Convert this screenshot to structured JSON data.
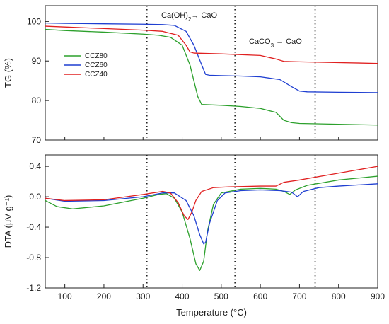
{
  "chart_data": [
    {
      "type": "line",
      "ylabel": "TG (%)",
      "xlim": [
        50,
        900
      ],
      "ylim": [
        70,
        104
      ],
      "yticks": [
        70,
        80,
        90,
        100
      ],
      "xticks": [
        100,
        200,
        300,
        400,
        500,
        600,
        700,
        800,
        900
      ],
      "legend": {
        "placement": "left",
        "entries": [
          "CCZ80",
          "CCZ60",
          "CCZ40"
        ]
      },
      "series": [
        {
          "name": "CCZ80",
          "color": "#2ca02c",
          "x": [
            50,
            100,
            200,
            300,
            340,
            370,
            400,
            420,
            430,
            440,
            450,
            500,
            550,
            600,
            640,
            660,
            680,
            700,
            800,
            900
          ],
          "y": [
            98.0,
            97.7,
            97.3,
            96.8,
            96.5,
            96.0,
            94.0,
            89.0,
            85.0,
            81.0,
            79.0,
            78.8,
            78.5,
            78.0,
            77.0,
            75.0,
            74.4,
            74.2,
            74.0,
            73.8
          ]
        },
        {
          "name": "CCZ60",
          "color": "#1f3fd1",
          "x": [
            50,
            100,
            200,
            300,
            350,
            380,
            410,
            430,
            450,
            460,
            470,
            500,
            550,
            600,
            650,
            680,
            700,
            720,
            800,
            900
          ],
          "y": [
            99.6,
            99.5,
            99.4,
            99.3,
            99.2,
            99.0,
            97.5,
            94.0,
            89.0,
            86.6,
            86.4,
            86.3,
            86.2,
            86.0,
            85.3,
            83.5,
            82.4,
            82.2,
            82.1,
            82.0
          ]
        },
        {
          "name": "CCZ40",
          "color": "#e02020",
          "x": [
            50,
            100,
            200,
            300,
            350,
            390,
            410,
            420,
            430,
            500,
            600,
            640,
            660,
            700,
            800,
            900
          ],
          "y": [
            98.8,
            98.6,
            98.2,
            97.8,
            97.5,
            96.5,
            94.0,
            92.3,
            92.0,
            91.8,
            91.4,
            90.5,
            89.9,
            89.8,
            89.6,
            89.4
          ]
        }
      ],
      "annotations": [
        {
          "x_main": "Ca(OH)",
          "x_sub": "2",
          "x_tail": "→ CaO",
          "at_x": 310
        },
        {
          "x_main": "CaCO",
          "x_sub": "3",
          "x_tail": " → CaO",
          "at_x": 620
        }
      ],
      "vlines": [
        310,
        535,
        740
      ]
    },
    {
      "type": "line",
      "ylabel": "DTA (µV g⁻¹)",
      "xlabel": "Temperature (°C)",
      "xlim": [
        50,
        900
      ],
      "ylim": [
        -1.2,
        0.55
      ],
      "yticks": [
        -1.2,
        -0.8,
        -0.4,
        0.0,
        0.4
      ],
      "ytick_labels": [
        "-1.2",
        "-0.8",
        "-0.4",
        "0.0",
        "0.4"
      ],
      "xticks": [
        100,
        200,
        300,
        400,
        500,
        600,
        700,
        800,
        900
      ],
      "series": [
        {
          "name": "CCZ80",
          "color": "#2ca02c",
          "x": [
            50,
            80,
            120,
            200,
            300,
            340,
            360,
            380,
            400,
            420,
            435,
            445,
            455,
            465,
            480,
            500,
            550,
            600,
            640,
            660,
            675,
            690,
            720,
            800,
            900
          ],
          "y": [
            -0.05,
            -0.13,
            -0.16,
            -0.12,
            -0.02,
            0.03,
            0.04,
            -0.02,
            -0.2,
            -0.55,
            -0.88,
            -0.97,
            -0.85,
            -0.45,
            -0.1,
            0.05,
            0.1,
            0.11,
            0.1,
            0.07,
            0.03,
            0.09,
            0.15,
            0.22,
            0.27
          ]
        },
        {
          "name": "CCZ60",
          "color": "#1f3fd1",
          "x": [
            50,
            100,
            200,
            300,
            350,
            380,
            410,
            430,
            445,
            455,
            460,
            470,
            490,
            510,
            550,
            600,
            650,
            680,
            695,
            710,
            750,
            800,
            900
          ],
          "y": [
            -0.02,
            -0.06,
            -0.05,
            0.0,
            0.05,
            0.05,
            -0.05,
            -0.25,
            -0.5,
            -0.62,
            -0.6,
            -0.35,
            -0.05,
            0.05,
            0.08,
            0.09,
            0.08,
            0.06,
            0.0,
            0.07,
            0.12,
            0.14,
            0.17
          ]
        },
        {
          "name": "CCZ40",
          "color": "#e02020",
          "x": [
            50,
            100,
            200,
            300,
            350,
            370,
            390,
            405,
            415,
            425,
            435,
            450,
            480,
            520,
            600,
            640,
            660,
            700,
            800,
            900
          ],
          "y": [
            -0.02,
            -0.05,
            -0.04,
            0.03,
            0.07,
            0.05,
            -0.08,
            -0.25,
            -0.3,
            -0.2,
            -0.05,
            0.07,
            0.12,
            0.13,
            0.14,
            0.14,
            0.19,
            0.22,
            0.31,
            0.4
          ]
        }
      ],
      "vlines": [
        310,
        535,
        740
      ]
    }
  ]
}
